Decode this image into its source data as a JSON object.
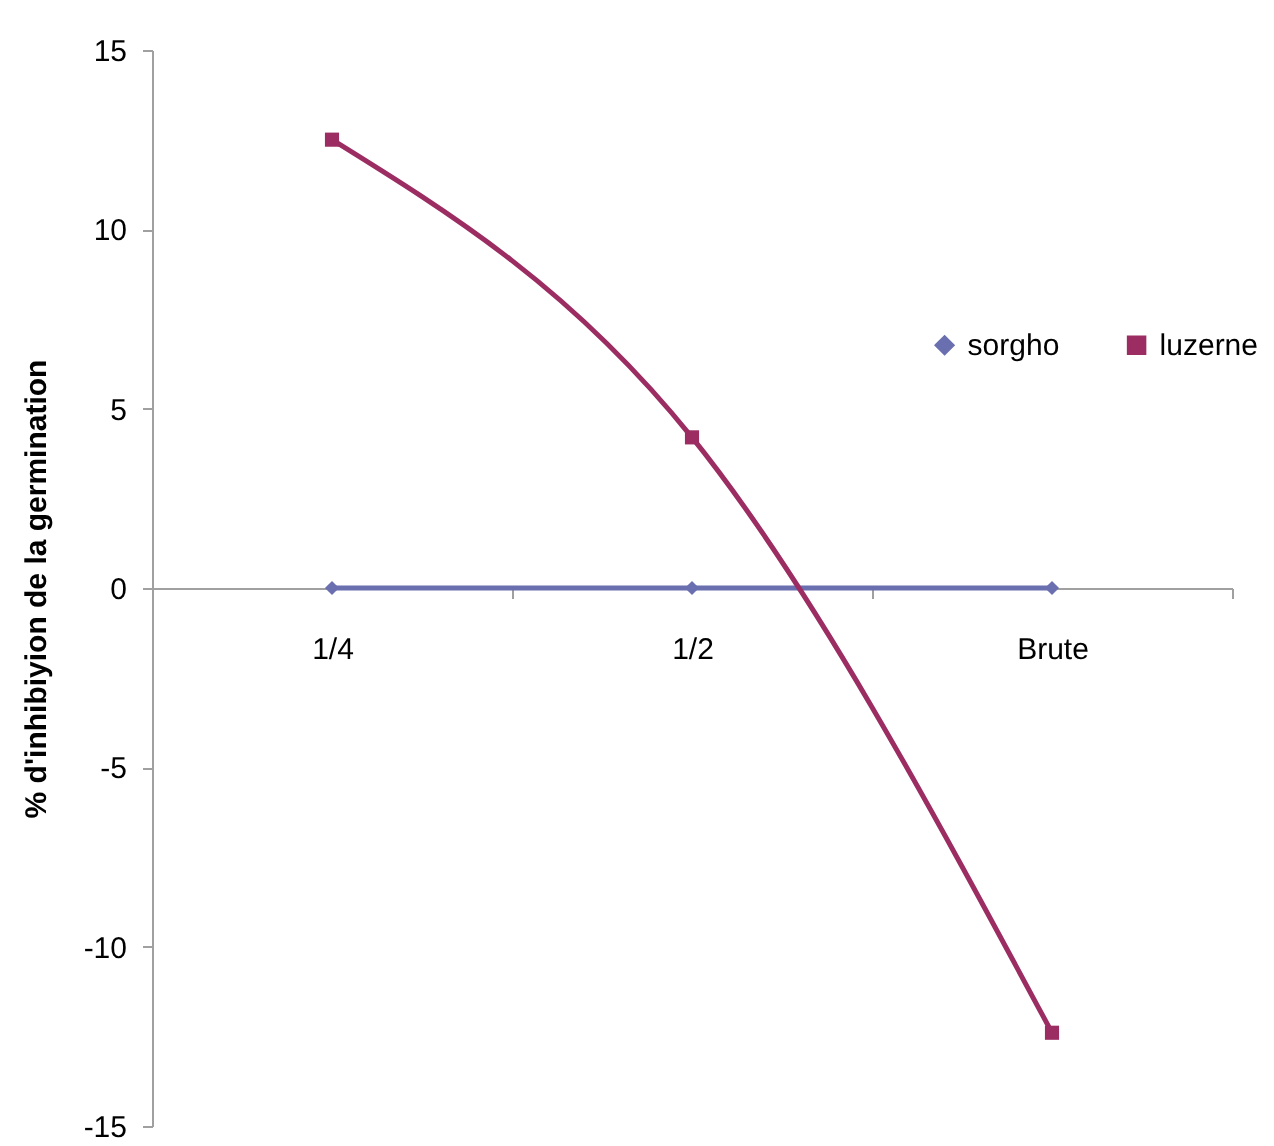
{
  "chart_data": {
    "type": "line",
    "ylabel": "% d'inhibiyion de  la germination",
    "categories": [
      "1/4",
      "1/2",
      "Brute"
    ],
    "series": [
      {
        "name": "sorgho",
        "color": "#6a6fb0",
        "values": [
          0,
          0,
          0
        ],
        "marker": "diamond"
      },
      {
        "name": "luzerne",
        "color": "#9b2d62",
        "values": [
          12.5,
          4.2,
          -12.4
        ],
        "marker": "square"
      }
    ],
    "ylim": [
      -15,
      15
    ],
    "yticks": [
      -15,
      -10,
      -5,
      0,
      5,
      10,
      15
    ],
    "grid": false,
    "legend": "right",
    "line_style": "solid"
  }
}
